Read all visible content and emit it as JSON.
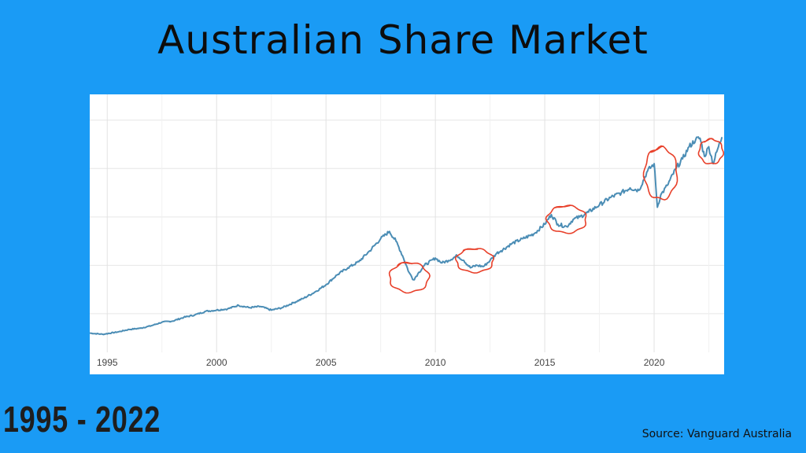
{
  "header": {
    "title": "Australian Share Market"
  },
  "footer": {
    "date_range": "1995 - 2022",
    "source": "Source: Vanguard Australia"
  },
  "colors": {
    "background": "#1a9bf5",
    "line": "#4b8db5",
    "annotation": "#e8402a",
    "grid": "#e6e6e6"
  },
  "chart_data": {
    "type": "line",
    "title": "",
    "xlabel": "",
    "ylabel": "",
    "x_ticks": [
      "1995",
      "2000",
      "2005",
      "2010",
      "2015",
      "2020"
    ],
    "xlim": [
      1994.2,
      2023.2
    ],
    "ylim": [
      0,
      100
    ],
    "grid": true,
    "y_axis_labels_visible": false,
    "series": [
      {
        "x": [
          1994.2,
          1994.8,
          1995.5,
          1996.0,
          1996.5,
          1997.0,
          1997.5,
          1998.0,
          1998.5,
          1999.0,
          1999.5,
          2000.0,
          2000.5,
          2001.0,
          2001.5,
          2002.0,
          2002.5,
          2003.0,
          2003.5,
          2004.0,
          2004.5,
          2005.0,
          2005.5,
          2006.0,
          2006.5,
          2007.0,
          2007.5,
          2007.9,
          2008.2,
          2008.5,
          2008.8,
          2009.0,
          2009.2,
          2009.5,
          2010.0,
          2010.3,
          2010.6,
          2011.0,
          2011.3,
          2011.6,
          2011.9,
          2012.2,
          2012.5,
          2012.8,
          2013.0,
          2013.5,
          2014.0,
          2014.5,
          2015.0,
          2015.3,
          2015.6,
          2016.0,
          2016.3,
          2016.6,
          2017.0,
          2017.5,
          2018.0,
          2018.5,
          2018.9,
          2019.3,
          2019.7,
          2020.0,
          2020.15,
          2020.3,
          2020.6,
          2021.0,
          2021.3,
          2021.6,
          2021.9,
          2022.1,
          2022.3,
          2022.5,
          2022.7,
          2022.9,
          2023.1
        ],
        "values": [
          6.0,
          5.5,
          6.5,
          7.5,
          8.0,
          9.0,
          10.5,
          11.0,
          12.5,
          13.5,
          15.0,
          15.5,
          16.0,
          17.5,
          16.5,
          17.0,
          15.5,
          16.5,
          18.5,
          20.5,
          23.0,
          26.0,
          30.0,
          33.0,
          35.5,
          40.0,
          45.0,
          48.0,
          44.0,
          38.0,
          31.0,
          28.0,
          30.5,
          34.0,
          37.0,
          35.0,
          36.0,
          38.0,
          36.0,
          33.0,
          34.0,
          33.5,
          36.0,
          39.0,
          40.0,
          43.0,
          45.0,
          47.0,
          51.0,
          55.0,
          51.0,
          50.0,
          53.0,
          54.0,
          56.0,
          59.0,
          62.0,
          64.0,
          66.0,
          65.0,
          73.0,
          76.0,
          58.0,
          63.0,
          67.0,
          74.0,
          78.0,
          83.0,
          86.0,
          86.5,
          79.0,
          83.0,
          76.0,
          82.0,
          87.0
        ]
      }
    ],
    "annotations": [
      {
        "type": "hand-drawn-circle",
        "center_x": 2008.8,
        "center_y": 29.0,
        "rx_years": 0.9,
        "ry_units": 6.0
      },
      {
        "type": "hand-drawn-circle",
        "center_x": 2011.8,
        "center_y": 36.0,
        "rx_years": 0.85,
        "ry_units": 4.8
      },
      {
        "type": "hand-drawn-circle",
        "center_x": 2016.0,
        "center_y": 53.0,
        "rx_years": 0.9,
        "ry_units": 5.5
      },
      {
        "type": "hand-drawn-circle",
        "center_x": 2020.3,
        "center_y": 72.0,
        "rx_years": 0.75,
        "ry_units": 10.5
      },
      {
        "type": "hand-drawn-circle",
        "center_x": 2022.6,
        "center_y": 81.0,
        "rx_years": 0.55,
        "ry_units": 5.0
      }
    ]
  }
}
